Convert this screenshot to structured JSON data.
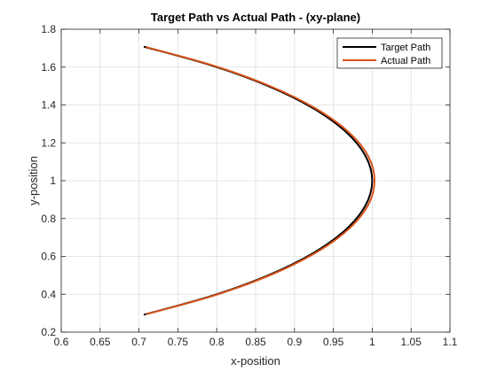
{
  "chart_data": {
    "type": "line",
    "title": "Target Path vs Actual Path - (xy-plane)",
    "xlabel": "x-position",
    "ylabel": "y-position",
    "xlim": [
      0.6,
      1.1
    ],
    "ylim": [
      0.2,
      1.8
    ],
    "xticks": [
      "0.6",
      "0.65",
      "0.7",
      "0.75",
      "0.8",
      "0.85",
      "0.9",
      "0.95",
      "1",
      "1.05",
      "1.1"
    ],
    "yticks": [
      "0.2",
      "0.4",
      "0.6",
      "0.8",
      "1",
      "1.2",
      "1.4",
      "1.6",
      "1.8"
    ],
    "grid": true,
    "legend_position": "top-right",
    "series": [
      {
        "name": "Target Path",
        "color": "#000000",
        "points": [
          [
            0.7071,
            1.7071
          ],
          [
            0.7934,
            1.6087
          ],
          [
            0.866,
            1.5
          ],
          [
            0.9239,
            1.3827
          ],
          [
            0.9659,
            1.2588
          ],
          [
            0.9914,
            1.1305
          ],
          [
            1.0,
            1.0
          ],
          [
            0.9914,
            0.8695
          ],
          [
            0.9659,
            0.7412
          ],
          [
            0.9239,
            0.6173
          ],
          [
            0.866,
            0.5
          ],
          [
            0.7934,
            0.3913
          ],
          [
            0.7071,
            0.2929
          ]
        ]
      },
      {
        "name": "Actual Path",
        "color": "#D95319",
        "points": [
          [
            0.71,
            1.705
          ],
          [
            0.7966,
            1.6068
          ],
          [
            0.8693,
            1.4983
          ],
          [
            0.9273,
            1.3814
          ],
          [
            0.9693,
            1.2579
          ],
          [
            0.9948,
            1.13
          ],
          [
            1.003,
            1.0
          ],
          [
            0.9946,
            0.8698
          ],
          [
            0.969,
            0.7418
          ],
          [
            0.9268,
            0.6181
          ],
          [
            0.8687,
            0.5008
          ],
          [
            0.7955,
            0.392
          ],
          [
            0.71,
            0.2955
          ]
        ]
      }
    ]
  }
}
